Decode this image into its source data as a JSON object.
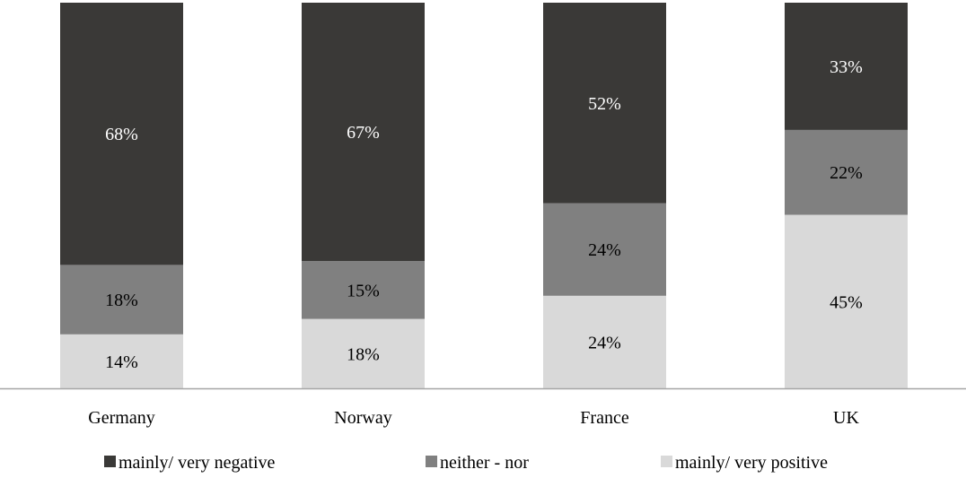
{
  "chart_data": {
    "type": "bar",
    "stacked": true,
    "orientation": "vertical",
    "percent_stacked": true,
    "categories": [
      "Germany",
      "Norway",
      "France",
      "UK"
    ],
    "series": [
      {
        "name": "mainly/ very positive",
        "color": "#d9d9d9",
        "label_color": "#000000",
        "values": [
          14,
          18,
          24,
          45
        ],
        "labels": [
          "14%",
          "18%",
          "24%",
          "45%"
        ]
      },
      {
        "name": "neither - nor",
        "color": "#808080",
        "label_color": "#000000",
        "values": [
          18,
          15,
          24,
          22
        ],
        "labels": [
          "18%",
          "15%",
          "24%",
          "22%"
        ]
      },
      {
        "name": "mainly/ very negative",
        "color": "#3a3937",
        "label_color": "#ffffff",
        "values": [
          68,
          67,
          52,
          33
        ],
        "labels": [
          "68%",
          "67%",
          "52%",
          "33%"
        ]
      }
    ],
    "legend_order": [
      "mainly/ very negative",
      "neither - nor",
      "mainly/ very positive"
    ],
    "ylim": [
      0,
      100
    ],
    "grid": false,
    "legend_position": "bottom"
  }
}
